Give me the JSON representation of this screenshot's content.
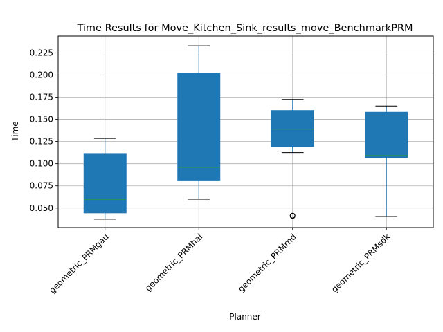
{
  "chart_data": {
    "type": "box",
    "title": "Time Results for Move_Kitchen_Sink_results_move_BenchmarkPRM",
    "xlabel": "Planner",
    "ylabel": "Time",
    "ylim": [
      0.028,
      0.244
    ],
    "yticks": [
      0.05,
      0.075,
      0.1,
      0.125,
      0.15,
      0.175,
      0.2,
      0.225
    ],
    "ytick_labels": [
      "0.050",
      "0.075",
      "0.100",
      "0.125",
      "0.150",
      "0.175",
      "0.200",
      "0.225"
    ],
    "grid": true,
    "categories": [
      "geometric_PRMgau",
      "geometric_PRMhal",
      "geometric_PRMrnd",
      "geometric_PRMsdk"
    ],
    "boxes": [
      {
        "whisker_low": 0.0375,
        "q1": 0.0445,
        "median": 0.06,
        "q3": 0.1115,
        "whisker_high": 0.1285,
        "outliers": []
      },
      {
        "whisker_low": 0.06,
        "q1": 0.0815,
        "median": 0.096,
        "q3": 0.202,
        "whisker_high": 0.233,
        "outliers": []
      },
      {
        "whisker_low": 0.1125,
        "q1": 0.1195,
        "median": 0.139,
        "q3": 0.16,
        "whisker_high": 0.1725,
        "outliers": [
          0.041,
          0.0415
        ]
      },
      {
        "whisker_low": 0.0405,
        "q1": 0.107,
        "median": 0.109,
        "q3": 0.158,
        "whisker_high": 0.165,
        "outliers": []
      }
    ],
    "colors": {
      "box_fill": "#1f77b4",
      "whisker": "#1f77b4",
      "median": "#2ca02c",
      "cap": "#000000",
      "grid": "#b0b0b0"
    }
  }
}
